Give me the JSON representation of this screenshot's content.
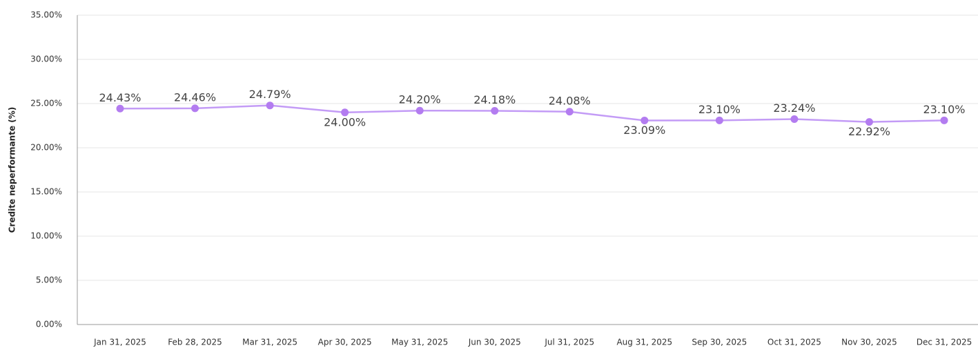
{
  "chart_data": {
    "type": "line",
    "y_label": "Credite neperformante (%)",
    "categories": [
      "Jan 31, 2025",
      "Feb 28, 2025",
      "Mar 31, 2025",
      "Apr 30, 2025",
      "May 31, 2025",
      "Jun 30, 2025",
      "Jul 31, 2025",
      "Aug 31, 2025",
      "Sep 30, 2025",
      "Oct 31, 2025",
      "Nov 30, 2025",
      "Dec 31, 2025"
    ],
    "series": [
      {
        "name": "Credite neperformante (%)",
        "color": "#c39bf6",
        "marker_color": "#b37cf0",
        "values": [
          24.43,
          24.46,
          24.79,
          24.0,
          24.2,
          24.18,
          24.08,
          23.09,
          23.1,
          23.24,
          22.92,
          23.1
        ],
        "value_labels": [
          "24.43%",
          "24.46%",
          "24.79%",
          "24.00%",
          "24.20%",
          "24.18%",
          "24.08%",
          "23.09%",
          "23.10%",
          "23.24%",
          "22.92%",
          "23.10%"
        ]
      }
    ],
    "ylim": [
      0,
      35
    ],
    "yticks": [
      {
        "value": 0,
        "label": "0.00%"
      },
      {
        "value": 5,
        "label": "5.00%"
      },
      {
        "value": 10,
        "label": "10.00%"
      },
      {
        "value": 15,
        "label": "15.00%"
      },
      {
        "value": 20,
        "label": "20.00%"
      },
      {
        "value": 25,
        "label": "25.00%"
      },
      {
        "value": 30,
        "label": "30.00%"
      },
      {
        "value": 35,
        "label": "35.00%"
      }
    ],
    "grid": true
  }
}
